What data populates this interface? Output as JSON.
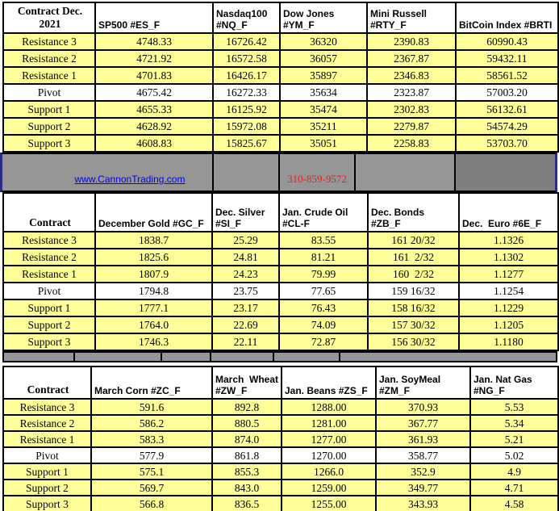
{
  "colors": {
    "row_yellow": "#FFFF99",
    "band_gray": "#969696",
    "band_gray_dark": "#7F7F7F",
    "navy_accent": "#2D2D86",
    "link_blue": "#0000EE",
    "phone_red": "#E32222"
  },
  "banner": {
    "link": "www.CannonTrading.com",
    "phone": "310-859-9572"
  },
  "tables": [
    {
      "id": "indices",
      "corner": "Contract Dec.\n2021",
      "columns": [
        "SP500 #ES_F",
        "Nasdaq100\n#NQ_F",
        "Dow Jones\n#YM_F",
        "Mini Russell\n#RTY_F",
        "BitCoin Index #BRTI"
      ],
      "rows": [
        {
          "label": "Resistance 3",
          "values": [
            "4748.33",
            "16726.42",
            "36320",
            "2390.83",
            "60990.43"
          ]
        },
        {
          "label": "Resistance 2",
          "values": [
            "4721.92",
            "16572.58",
            "36057",
            "2367.87",
            "59432.11"
          ]
        },
        {
          "label": "Resistance 1",
          "values": [
            "4701.83",
            "16426.17",
            "35897",
            "2346.83",
            "58561.52"
          ]
        },
        {
          "label": "Pivot",
          "pivot": true,
          "values": [
            "4675.42",
            "16272.33",
            "35634",
            "2323.87",
            "57003.20"
          ]
        },
        {
          "label": "Support 1",
          "values": [
            "4655.33",
            "16125.92",
            "35474",
            "2302.83",
            "56132.61"
          ]
        },
        {
          "label": "Support 2",
          "values": [
            "4628.92",
            "15972.08",
            "35211",
            "2279.87",
            "54574.29"
          ]
        },
        {
          "label": "Support 3",
          "values": [
            "4608.83",
            "15825.67",
            "35051",
            "2258.83",
            "53703.70"
          ]
        }
      ]
    },
    {
      "id": "metals-energy-bonds",
      "corner": "Contract",
      "columns": [
        "December Gold #GC_F",
        "Dec. Silver\n#SI_F",
        "Jan. Crude Oil\n#CL-F",
        "Dec. Bonds  #ZB_F",
        "Dec.  Euro #6E_F"
      ],
      "rows": [
        {
          "label": "Resistance 3",
          "values": [
            "1838.7",
            "25.29",
            "83.55",
            "161 20/32",
            "1.1326"
          ]
        },
        {
          "label": "Resistance 2",
          "values": [
            "1825.6",
            "24.81",
            "81.21",
            "161  2/32",
            "1.1302"
          ]
        },
        {
          "label": "Resistance 1",
          "values": [
            "1807.9",
            "24.23",
            "79.99",
            "160  2/32",
            "1.1277"
          ]
        },
        {
          "label": "Pivot",
          "pivot": true,
          "values": [
            "1794.8",
            "23.75",
            "77.65",
            "159 16/32",
            "1.1254"
          ]
        },
        {
          "label": "Support 1",
          "values": [
            "1777.1",
            "23.17",
            "76.43",
            "158 16/32",
            "1.1229"
          ]
        },
        {
          "label": "Support 2",
          "values": [
            "1764.0",
            "22.69",
            "74.09",
            "157 30/32",
            "1.1205"
          ]
        },
        {
          "label": "Support 3",
          "values": [
            "1746.3",
            "22.11",
            "72.87",
            "156 30/32",
            "1.1180"
          ]
        }
      ]
    },
    {
      "id": "grains-gas",
      "corner": "Contract",
      "columns": [
        "March Corn #ZC_F",
        "March  Wheat\n#ZW_F",
        "Jan. Beans #ZS_F",
        "Jan. SoyMeal\n#ZM_F",
        "Jan. Nat Gas #NG_F"
      ],
      "rows": [
        {
          "label": "Resistance 3",
          "values": [
            "591.6",
            "892.8",
            "1288.00",
            "370.93",
            "5.53"
          ]
        },
        {
          "label": "Resistance 2",
          "values": [
            "586.2",
            "880.5",
            "1281.00",
            "367.77",
            "5.34"
          ]
        },
        {
          "label": "Resistance 1",
          "values": [
            "583.3",
            "874.0",
            "1277.00",
            "361.93",
            "5.21"
          ]
        },
        {
          "label": "Pivot",
          "pivot": true,
          "values": [
            "577.9",
            "861.8",
            "1270.00",
            "358.77",
            "5.02"
          ]
        },
        {
          "label": "Support 1",
          "values": [
            "575.1",
            "855.3",
            "1266.0",
            "352.9",
            "4.9"
          ]
        },
        {
          "label": "Support 2",
          "values": [
            "569.7",
            "843.0",
            "1259.00",
            "349.77",
            "4.71"
          ]
        },
        {
          "label": "Support 3",
          "values": [
            "566.8",
            "836.5",
            "1255.00",
            "343.93",
            "4.58"
          ]
        }
      ]
    }
  ]
}
